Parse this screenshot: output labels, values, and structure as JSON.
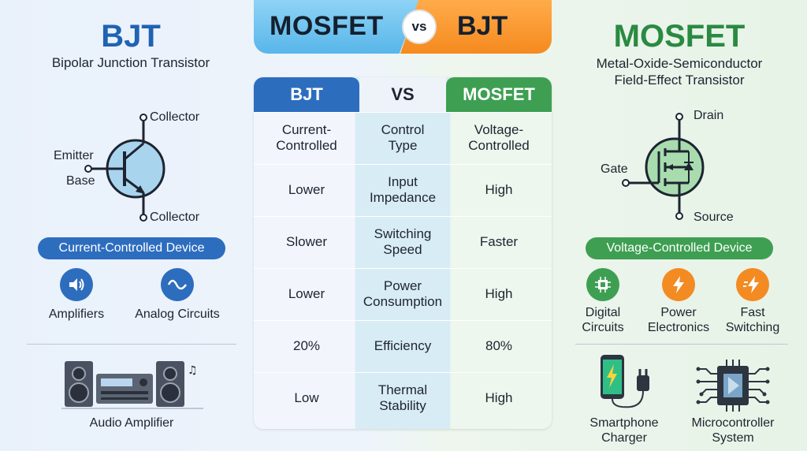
{
  "banner": {
    "left": "MOSFET",
    "vs": "vs",
    "right": "BJT"
  },
  "bjt": {
    "title": "BJT",
    "subtitle": "Bipolar Junction Transistor",
    "terminals": {
      "collector_top": "Collector",
      "emitter": "Emitter",
      "base": "Base",
      "collector_bottom": "Collector"
    },
    "pill": "Current-Controlled Device",
    "features": [
      {
        "label": "Amplifiers",
        "icon": "speaker-icon"
      },
      {
        "label": "Analog Circuits",
        "icon": "sine-wave-icon"
      }
    ],
    "application": {
      "label": "Audio Amplifier",
      "icon": "stereo-system-icon"
    }
  },
  "mosfet": {
    "title": "MOSFET",
    "subtitle_line1": "Metal-Oxide-Semiconductor",
    "subtitle_line2": "Field-Effect Transistor",
    "terminals": {
      "drain": "Drain",
      "gate": "Gate",
      "source": "Source"
    },
    "pill": "Voltage-Controlled Device",
    "features": [
      {
        "label_line1": "Digital",
        "label_line2": "Circuits",
        "icon": "chip-icon"
      },
      {
        "label_line1": "Power",
        "label_line2": "Electronics",
        "icon": "lightning-icon"
      },
      {
        "label_line1": "Fast",
        "label_line2": "Switching",
        "icon": "fast-lightning-icon"
      }
    ],
    "applications": [
      {
        "label_line1": "Smartphone",
        "label_line2": "Charger",
        "icon": "phone-charger-icon"
      },
      {
        "label_line1": "Microcontroller",
        "label_line2": "System",
        "icon": "microcontroller-icon"
      }
    ]
  },
  "table": {
    "headers": {
      "bjt": "BJT",
      "vs": "VS",
      "mosfet": "MOSFET"
    },
    "rows": [
      {
        "bjt_l1": "Current-",
        "bjt_l2": "Controlled",
        "attr_l1": "Control",
        "attr_l2": "Type",
        "mos_l1": "Voltage-",
        "mos_l2": "Controlled"
      },
      {
        "bjt_l1": "Lower",
        "bjt_l2": "",
        "attr_l1": "Input",
        "attr_l2": "Impedance",
        "mos_l1": "High",
        "mos_l2": ""
      },
      {
        "bjt_l1": "Slower",
        "bjt_l2": "",
        "attr_l1": "Switching",
        "attr_l2": "Speed",
        "mos_l1": "Faster",
        "mos_l2": ""
      },
      {
        "bjt_l1": "Lower",
        "bjt_l2": "",
        "attr_l1": "Power",
        "attr_l2": "Consumption",
        "mos_l1": "High",
        "mos_l2": ""
      },
      {
        "bjt_l1": "20%",
        "bjt_l2": "",
        "attr_l1": "Efficiency",
        "attr_l2": "",
        "mos_l1": "80%",
        "mos_l2": ""
      },
      {
        "bjt_l1": "Low",
        "bjt_l2": "",
        "attr_l1": "Thermal",
        "attr_l2": "Stability",
        "mos_l1": "High",
        "mos_l2": ""
      }
    ]
  },
  "colors": {
    "bjt_blue": "#2d6dbe",
    "mosfet_green": "#3e9f52",
    "accent_orange": "#f38b22"
  }
}
